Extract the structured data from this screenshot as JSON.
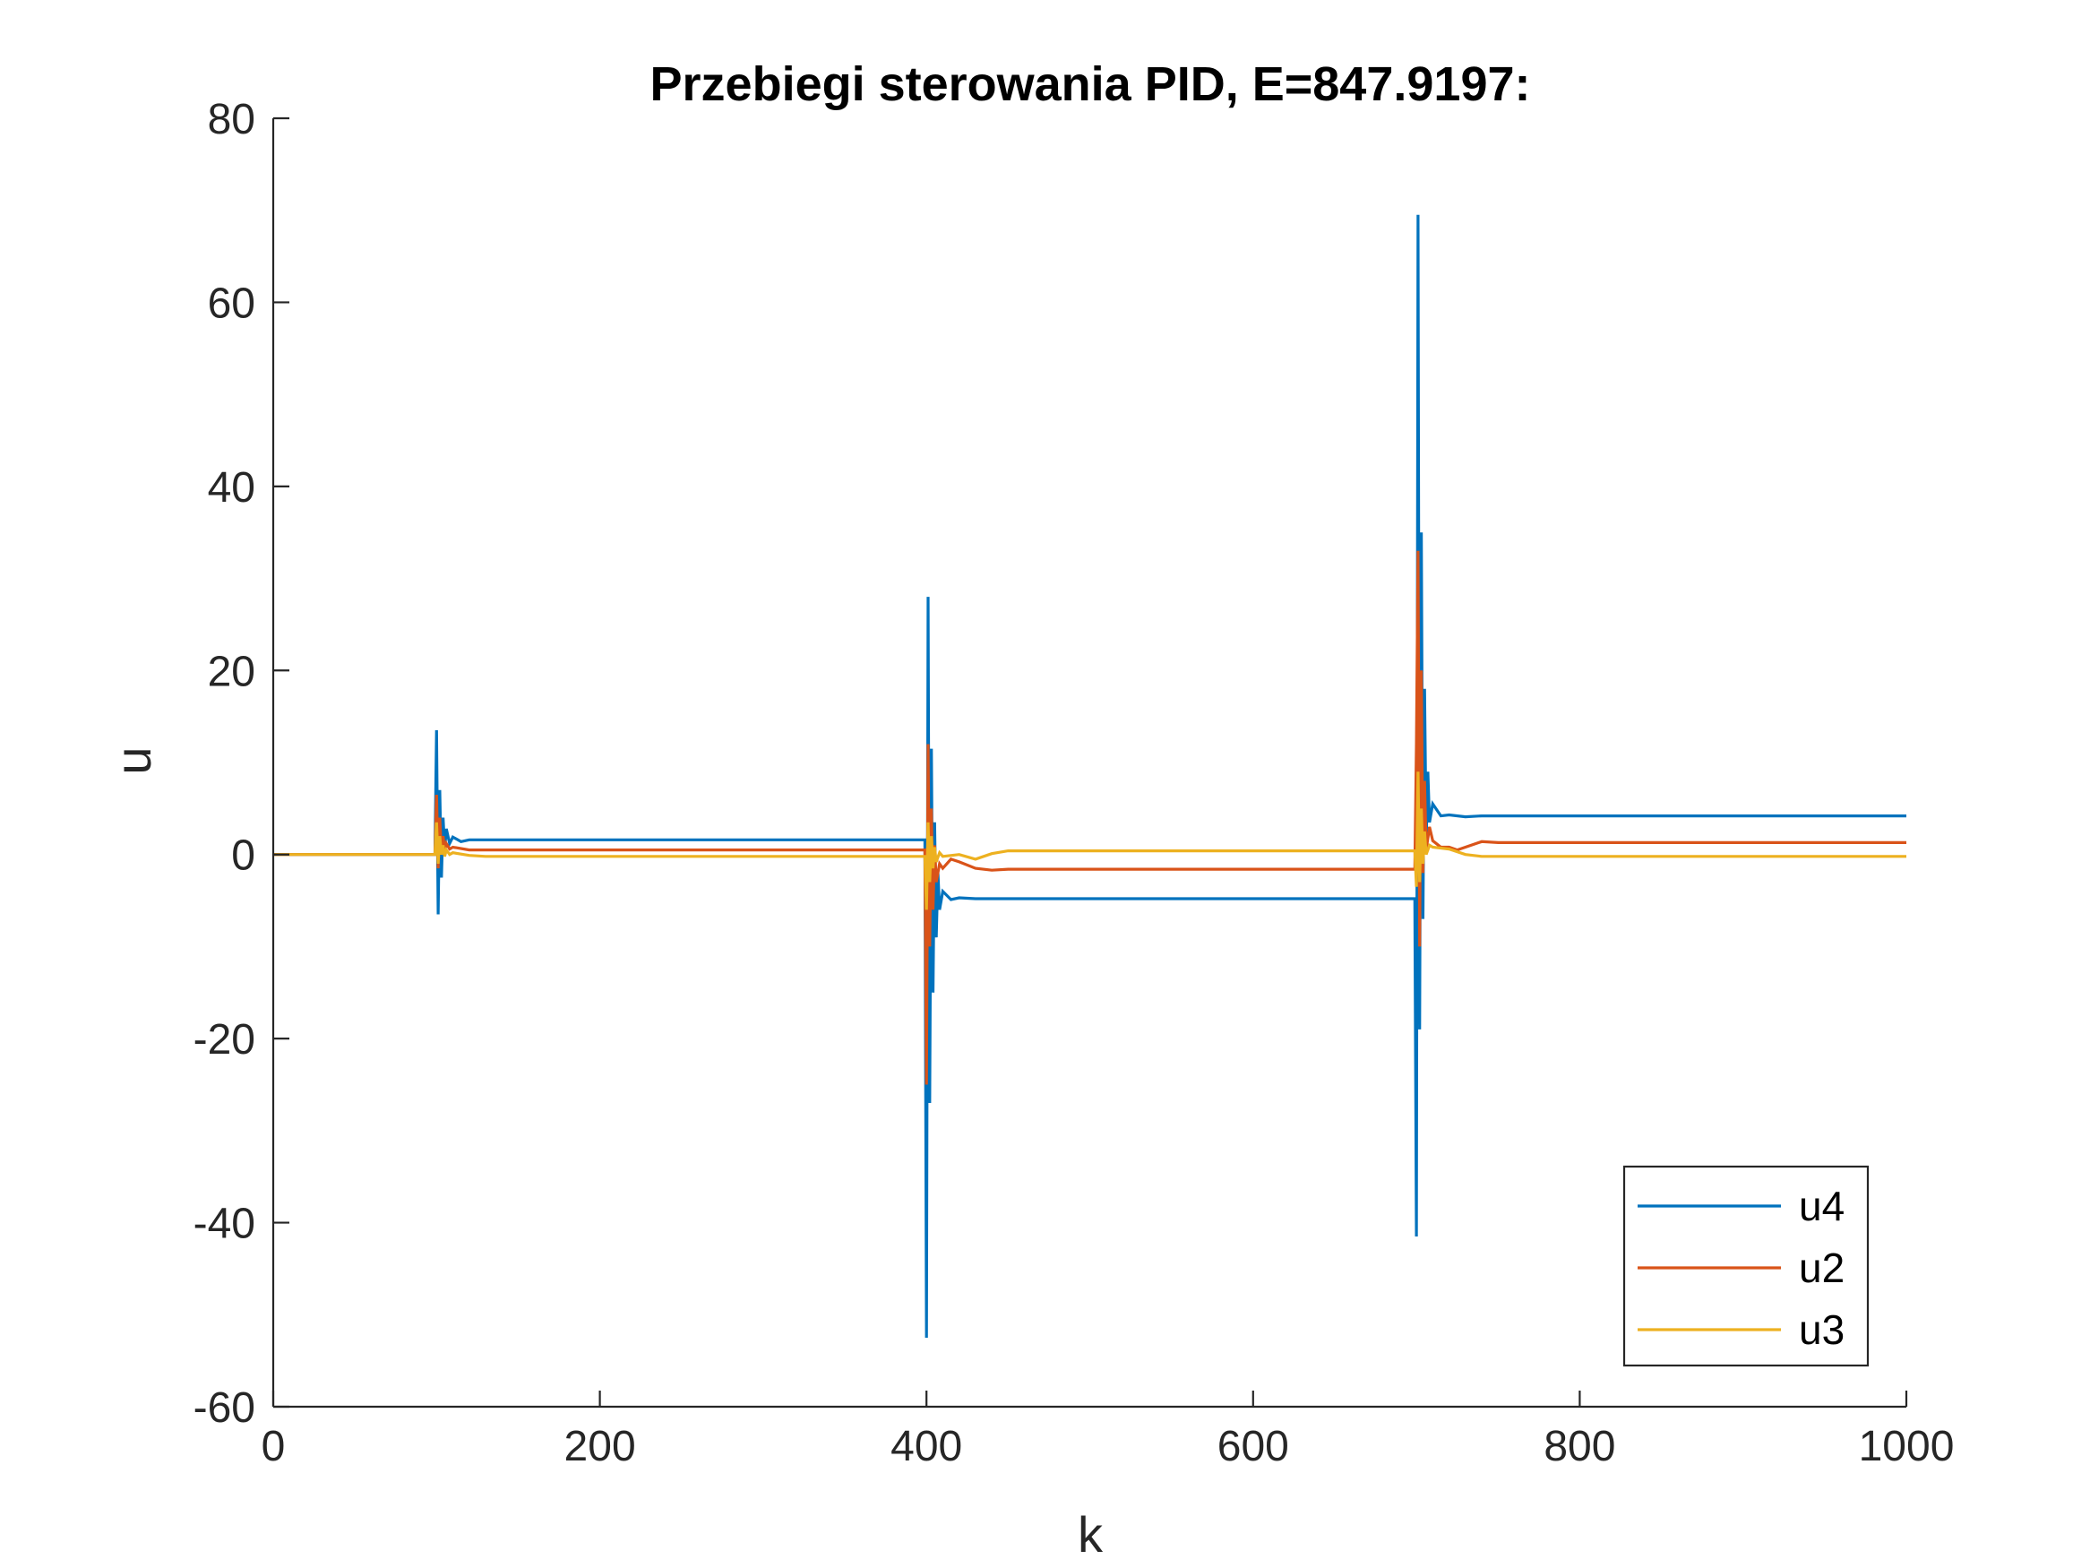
{
  "chart_data": {
    "type": "line",
    "title": "Przebiegi sterowania PID, E=847.9197:",
    "xlabel": "k",
    "ylabel": "u",
    "xlim": [
      0,
      1000
    ],
    "ylim": [
      -60,
      80
    ],
    "xticks": [
      "0",
      "200",
      "400",
      "600",
      "800",
      "1000"
    ],
    "yticks": [
      "80",
      "60",
      "40",
      "20",
      "0",
      "-20",
      "-40",
      "-60"
    ],
    "grid": false,
    "legend_position": "bottom-right",
    "colors": {
      "u4": "#0072BD",
      "u2": "#D95319",
      "u3": "#EDB120",
      "axis": "#262626"
    },
    "series": [
      {
        "name": "u4",
        "x": [
          0,
          99,
          100,
          101,
          102,
          103,
          104,
          105,
          106,
          108,
          110,
          115,
          120,
          130,
          140,
          200,
          300,
          399,
          400,
          401,
          402,
          403,
          404,
          405,
          406,
          407,
          408,
          410,
          415,
          420,
          430,
          440,
          450,
          500,
          600,
          699,
          700,
          701,
          702,
          703,
          704,
          705,
          706,
          707,
          708,
          710,
          715,
          720,
          730,
          740,
          750,
          800,
          900,
          1000
        ],
        "values": [
          0,
          0,
          13.5,
          -6.5,
          7.0,
          -2.5,
          4.0,
          0.5,
          2.8,
          1.2,
          1.9,
          1.4,
          1.6,
          1.6,
          1.6,
          1.6,
          1.6,
          1.6,
          -52.5,
          28.0,
          -27.0,
          11.5,
          -15.0,
          3.5,
          -9.0,
          -2.0,
          -6.0,
          -4.0,
          -4.9,
          -4.7,
          -4.8,
          -4.8,
          -4.8,
          -4.8,
          -4.8,
          -4.8,
          -41.5,
          69.5,
          -19.0,
          35.0,
          -7.0,
          18.0,
          1.5,
          9.0,
          3.5,
          5.5,
          4.2,
          4.3,
          4.1,
          4.2,
          4.2,
          4.2,
          4.2,
          4.2
        ]
      },
      {
        "name": "u2",
        "x": [
          0,
          99,
          100,
          101,
          102,
          103,
          104,
          105,
          106,
          108,
          110,
          120,
          130,
          200,
          300,
          399,
          400,
          401,
          402,
          403,
          404,
          405,
          406,
          408,
          410,
          415,
          420,
          430,
          440,
          450,
          500,
          600,
          699,
          700,
          701,
          702,
          703,
          704,
          705,
          706,
          708,
          710,
          715,
          720,
          725,
          730,
          740,
          750,
          800,
          900,
          1000
        ],
        "values": [
          0,
          0,
          6.5,
          -1.5,
          4.0,
          0.2,
          2.0,
          0.4,
          1.2,
          0.6,
          0.8,
          0.5,
          0.5,
          0.5,
          0.5,
          0.5,
          -25.0,
          12.0,
          -10.0,
          5.0,
          -6.0,
          1.0,
          -3.0,
          -1.0,
          -1.5,
          -0.5,
          -0.8,
          -1.5,
          -1.7,
          -1.6,
          -1.6,
          -1.6,
          -1.6,
          12.0,
          33.0,
          -10.0,
          20.0,
          -2.0,
          8.0,
          0.5,
          3.0,
          1.5,
          0.8,
          0.8,
          0.5,
          0.8,
          1.4,
          1.3,
          1.3,
          1.3,
          1.3
        ]
      },
      {
        "name": "u3",
        "x": [
          0,
          99,
          100,
          101,
          102,
          103,
          104,
          105,
          106,
          108,
          110,
          120,
          130,
          200,
          300,
          399,
          400,
          401,
          402,
          403,
          404,
          405,
          406,
          408,
          410,
          420,
          430,
          440,
          450,
          500,
          600,
          699,
          700,
          701,
          702,
          703,
          704,
          705,
          706,
          708,
          710,
          720,
          730,
          740,
          750,
          800,
          900,
          1000
        ],
        "values": [
          0,
          0,
          3.5,
          -1.0,
          2.0,
          0.0,
          1.0,
          -0.2,
          0.5,
          0.0,
          0.2,
          -0.1,
          -0.2,
          -0.2,
          -0.2,
          -0.2,
          -6.0,
          3.5,
          -3.0,
          2.0,
          -1.5,
          0.8,
          -0.8,
          0.2,
          -0.2,
          0.0,
          -0.5,
          0.1,
          0.4,
          0.4,
          0.4,
          0.4,
          -3.5,
          9.0,
          -3.0,
          5.0,
          -1.0,
          2.5,
          0.0,
          1.0,
          0.8,
          0.6,
          0.0,
          -0.2,
          -0.2,
          -0.2,
          -0.2,
          -0.2
        ]
      }
    ]
  }
}
